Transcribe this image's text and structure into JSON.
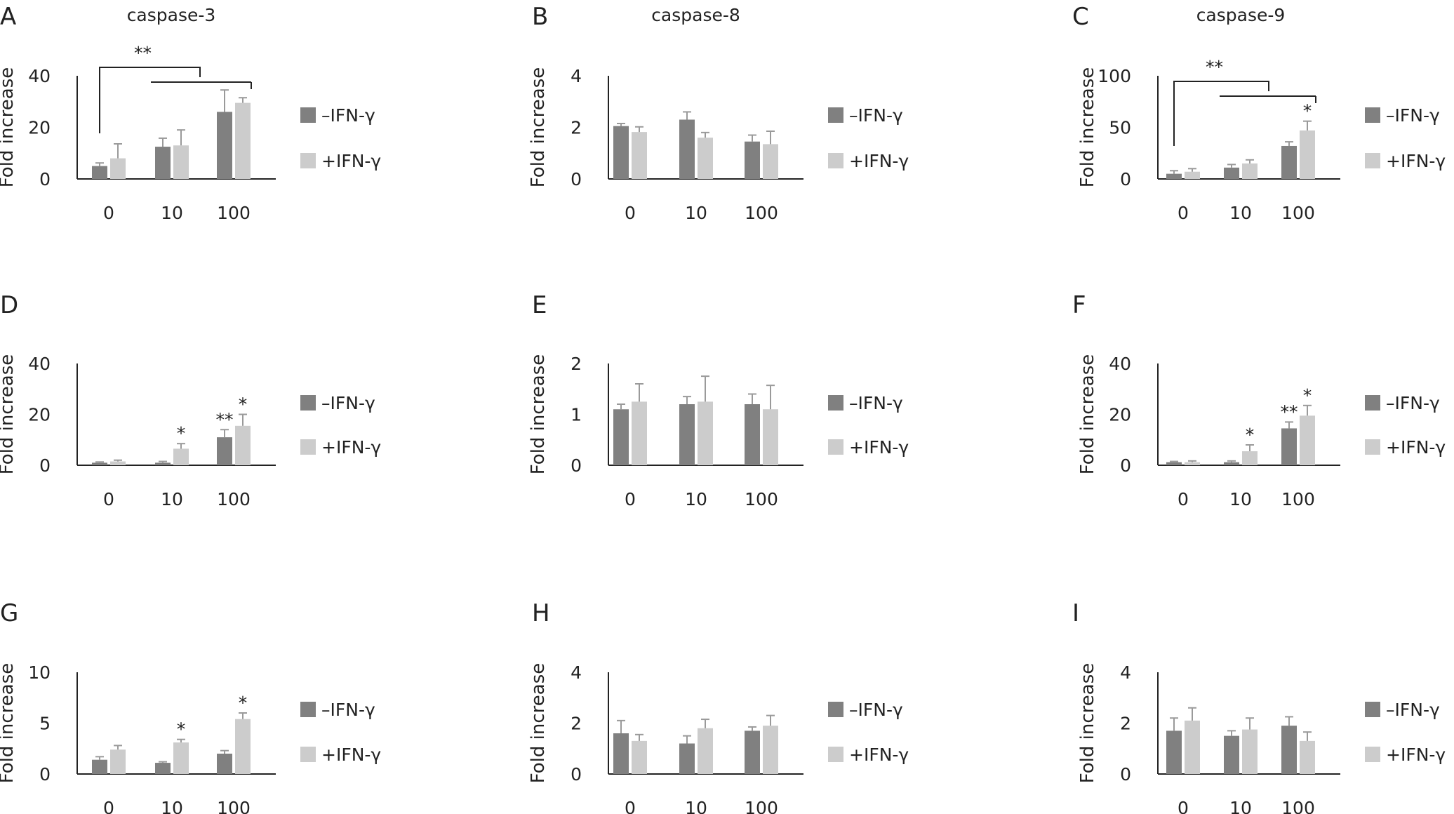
{
  "colors": {
    "minus": "#808080",
    "plus": "#cccccc",
    "error": "#9a9a9a",
    "axis": "#222222"
  },
  "chart_data": [
    {
      "panel": "A",
      "title": "caspase-3",
      "type": "bar",
      "categories": [
        "0",
        "10",
        "100"
      ],
      "ylabel": "Fold increase",
      "ylim": [
        0,
        40
      ],
      "yticks": [
        0,
        20,
        40
      ],
      "series": [
        {
          "name": "–IFN-γ",
          "values": [
            5,
            12.5,
            26
          ],
          "errors": [
            1.2,
            3.3,
            8.5
          ]
        },
        {
          "name": "+IFN-γ",
          "values": [
            8,
            13,
            29.5
          ],
          "errors": [
            5.6,
            6,
            2
          ]
        }
      ],
      "significance": [
        "",
        "",
        "",
        "",
        "",
        ""
      ],
      "bracket": {
        "label": "**",
        "from": 0,
        "upper_to": 1,
        "lower_from": 1,
        "lower_to": 2
      }
    },
    {
      "panel": "B",
      "title": "caspase-8",
      "type": "bar",
      "categories": [
        "0",
        "10",
        "100"
      ],
      "ylabel": "Fold increase",
      "ylim": [
        0,
        4
      ],
      "yticks": [
        0,
        2,
        4
      ],
      "series": [
        {
          "name": "–IFN-γ",
          "values": [
            2.05,
            2.3,
            1.45
          ],
          "errors": [
            0.1,
            0.3,
            0.25
          ]
        },
        {
          "name": "+IFN-γ",
          "values": [
            1.82,
            1.6,
            1.35
          ],
          "errors": [
            0.2,
            0.2,
            0.5
          ]
        }
      ],
      "significance": [
        "",
        "",
        "",
        "",
        "",
        ""
      ]
    },
    {
      "panel": "C",
      "title": "caspase-9",
      "type": "bar",
      "categories": [
        "0",
        "10",
        "100"
      ],
      "ylabel": "Fold increase",
      "ylim": [
        0,
        100
      ],
      "yticks": [
        0,
        50,
        100
      ],
      "series": [
        {
          "name": "–IFN-γ",
          "values": [
            5,
            11,
            32
          ],
          "errors": [
            3,
            3,
            4
          ]
        },
        {
          "name": "+IFN-γ",
          "values": [
            7,
            15,
            47
          ],
          "errors": [
            3,
            3.5,
            9
          ]
        }
      ],
      "significance": [
        "",
        "",
        "",
        "",
        "",
        "*"
      ],
      "bracket": {
        "label": "**",
        "from": 0,
        "upper_to": 1,
        "lower_from": 1,
        "lower_to": 2
      }
    },
    {
      "panel": "D",
      "type": "bar",
      "categories": [
        "0",
        "10",
        "100"
      ],
      "ylabel": "Fold increase",
      "ylim": [
        0,
        40
      ],
      "yticks": [
        0,
        20,
        40
      ],
      "series": [
        {
          "name": "–IFN-γ",
          "values": [
            1,
            1,
            11
          ],
          "errors": [
            0.3,
            0.5,
            3
          ]
        },
        {
          "name": "+IFN-γ",
          "values": [
            1.5,
            6.5,
            15.5
          ],
          "errors": [
            0.5,
            2,
            4.5
          ]
        }
      ],
      "significance": [
        "",
        "",
        "",
        "*",
        "**",
        "*"
      ]
    },
    {
      "panel": "E",
      "type": "bar",
      "categories": [
        "0",
        "10",
        "100"
      ],
      "ylabel": "Fold increase",
      "ylim": [
        0,
        2
      ],
      "yticks": [
        0,
        1,
        2
      ],
      "series": [
        {
          "name": "–IFN-γ",
          "values": [
            1.1,
            1.2,
            1.2
          ],
          "errors": [
            0.1,
            0.15,
            0.2
          ]
        },
        {
          "name": "+IFN-γ",
          "values": [
            1.25,
            1.25,
            1.1
          ],
          "errors": [
            0.35,
            0.5,
            0.47
          ]
        }
      ],
      "significance": [
        "",
        "",
        "",
        "",
        "",
        ""
      ]
    },
    {
      "panel": "F",
      "type": "bar",
      "categories": [
        "0",
        "10",
        "100"
      ],
      "ylabel": "Fold increase",
      "ylim": [
        0,
        40
      ],
      "yticks": [
        0,
        20,
        40
      ],
      "series": [
        {
          "name": "–IFN-γ",
          "values": [
            1.2,
            1.2,
            14.5
          ],
          "errors": [
            0.3,
            0.5,
            2.5
          ]
        },
        {
          "name": "+IFN-γ",
          "values": [
            1.2,
            5.5,
            19.5
          ],
          "errors": [
            0.5,
            2.5,
            4
          ]
        }
      ],
      "significance": [
        "",
        "",
        "",
        "*",
        "**",
        "*"
      ]
    },
    {
      "panel": "G",
      "type": "bar",
      "categories": [
        "0",
        "10",
        "100"
      ],
      "ylabel": "Fold increase",
      "ylim": [
        0,
        10
      ],
      "yticks": [
        0,
        5,
        10
      ],
      "series": [
        {
          "name": "–IFN-γ",
          "values": [
            1.4,
            1.1,
            2.0
          ],
          "errors": [
            0.3,
            0.1,
            0.3
          ]
        },
        {
          "name": "+IFN-γ",
          "values": [
            2.4,
            3.1,
            5.4
          ],
          "errors": [
            0.4,
            0.3,
            0.6
          ]
        }
      ],
      "significance": [
        "",
        "",
        "",
        "*",
        "",
        "*"
      ]
    },
    {
      "panel": "H",
      "type": "bar",
      "categories": [
        "0",
        "10",
        "100"
      ],
      "ylabel": "Fold increase",
      "ylim": [
        0,
        4
      ],
      "yticks": [
        0,
        2,
        4
      ],
      "series": [
        {
          "name": "–IFN-γ",
          "values": [
            1.6,
            1.2,
            1.7
          ],
          "errors": [
            0.5,
            0.3,
            0.15
          ]
        },
        {
          "name": "+IFN-γ",
          "values": [
            1.3,
            1.8,
            1.9
          ],
          "errors": [
            0.25,
            0.35,
            0.4
          ]
        }
      ],
      "significance": [
        "",
        "",
        "",
        "",
        "",
        ""
      ]
    },
    {
      "panel": "I",
      "type": "bar",
      "categories": [
        "0",
        "10",
        "100"
      ],
      "ylabel": "Fold increase",
      "ylim": [
        0,
        4
      ],
      "yticks": [
        0,
        2,
        4
      ],
      "series": [
        {
          "name": "–IFN-γ",
          "values": [
            1.7,
            1.5,
            1.9
          ],
          "errors": [
            0.5,
            0.2,
            0.35
          ]
        },
        {
          "name": "+IFN-γ",
          "values": [
            2.1,
            1.75,
            1.3
          ],
          "errors": [
            0.5,
            0.45,
            0.35
          ]
        }
      ],
      "significance": [
        "",
        "",
        "",
        "",
        "",
        ""
      ]
    }
  ]
}
